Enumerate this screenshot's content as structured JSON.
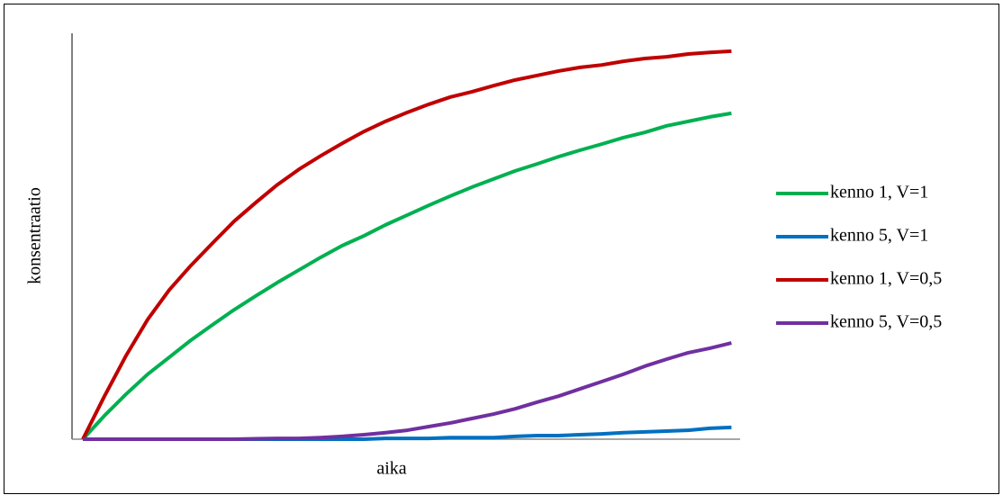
{
  "chart_data": {
    "type": "line",
    "x_label": "aika",
    "y_label": "konsentraatio",
    "x": [
      0,
      1,
      2,
      3,
      4,
      5,
      6,
      7,
      8,
      9,
      10,
      11,
      12,
      13,
      14,
      15,
      16,
      17,
      18,
      19,
      20,
      21,
      22,
      23,
      24,
      25,
      26,
      27,
      28,
      29,
      30
    ],
    "xlim": [
      -0.5,
      30.4
    ],
    "ylim": [
      0,
      100
    ],
    "legend": "right",
    "series": [
      {
        "name": "kenno 1, V=1",
        "color": "#00b050",
        "values": [
          0,
          5.8,
          11.1,
          16,
          20.2,
          24.4,
          28.2,
          31.9,
          35.3,
          38.6,
          41.7,
          44.8,
          47.7,
          50.1,
          52.8,
          55.2,
          57.6,
          59.9,
          62.1,
          64.1,
          66.1,
          67.8,
          69.6,
          71.2,
          72.7,
          74.3,
          75.6,
          77.2,
          78.3,
          79.4,
          80.3
        ]
      },
      {
        "name": "kenno 5, V=1",
        "color": "#0070c0",
        "values": [
          0,
          0,
          0,
          0,
          0,
          0,
          0,
          0,
          0,
          0,
          0,
          0,
          0,
          0,
          0.2,
          0.2,
          0.2,
          0.4,
          0.4,
          0.4,
          0.7,
          0.9,
          0.9,
          1.1,
          1.3,
          1.6,
          1.8,
          2.0,
          2.2,
          2.7,
          2.9
        ]
      },
      {
        "name": "kenno 1, V=0,5",
        "color": "#c00000",
        "values": [
          0,
          10.6,
          20.6,
          29.5,
          36.8,
          42.8,
          48.3,
          53.7,
          58.3,
          62.7,
          66.5,
          69.8,
          72.9,
          75.8,
          78.3,
          80.5,
          82.5,
          84.3,
          85.6,
          87.1,
          88.5,
          89.6,
          90.7,
          91.6,
          92.2,
          93.1,
          93.8,
          94.2,
          94.9,
          95.3,
          95.6
        ]
      },
      {
        "name": "kenno 5, V=0,5",
        "color": "#7030a0",
        "values": [
          0,
          0,
          0,
          0,
          0,
          0,
          0,
          0,
          0.1,
          0.2,
          0.2,
          0.4,
          0.7,
          1.1,
          1.6,
          2.2,
          3.1,
          4.0,
          5.1,
          6.2,
          7.5,
          9.1,
          10.6,
          12.4,
          14.2,
          16.0,
          18.0,
          19.7,
          21.3,
          22.4,
          23.7
        ]
      }
    ]
  }
}
